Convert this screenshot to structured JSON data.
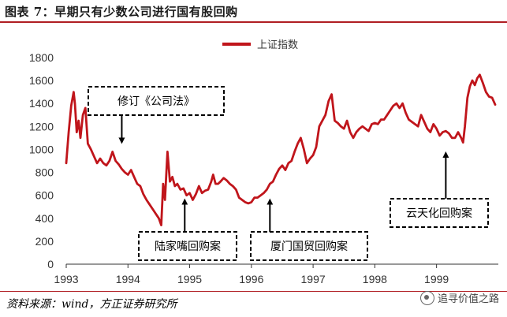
{
  "figure": {
    "title": "图表 7：早期只有少数公司进行国有股回购",
    "source": "资料来源：wind，方正证券研究所",
    "watermark": "追寻价值之路"
  },
  "chart_data": {
    "type": "line",
    "xlabel": "",
    "ylabel": "",
    "ylim": [
      0,
      1800
    ],
    "yticks": [
      0,
      200,
      400,
      600,
      800,
      1000,
      1200,
      1400,
      1600,
      1800
    ],
    "xticks": [
      "1993",
      "1994",
      "1995",
      "1996",
      "1997",
      "1998",
      "1999"
    ],
    "xlim": [
      1993.0,
      1999.95
    ],
    "grid": false,
    "legend": "top-center",
    "line_color": "#c0151b",
    "series": [
      {
        "name": "上证指数",
        "x": [
          1993.0,
          1993.04,
          1993.08,
          1993.12,
          1993.14,
          1993.17,
          1993.2,
          1993.23,
          1993.27,
          1993.31,
          1993.35,
          1993.4,
          1993.45,
          1993.5,
          1993.55,
          1993.6,
          1993.65,
          1993.7,
          1993.75,
          1993.8,
          1993.85,
          1993.9,
          1993.95,
          1994.0,
          1994.05,
          1994.1,
          1994.15,
          1994.2,
          1994.25,
          1994.3,
          1994.35,
          1994.4,
          1994.45,
          1994.5,
          1994.54,
          1994.57,
          1994.6,
          1994.64,
          1994.68,
          1994.72,
          1994.76,
          1994.8,
          1994.85,
          1994.9,
          1994.95,
          1995.0,
          1995.05,
          1995.1,
          1995.15,
          1995.2,
          1995.25,
          1995.3,
          1995.35,
          1995.38,
          1995.42,
          1995.46,
          1995.5,
          1995.55,
          1995.6,
          1995.65,
          1995.7,
          1995.75,
          1995.8,
          1995.85,
          1995.9,
          1995.95,
          1996.0,
          1996.05,
          1996.1,
          1996.15,
          1996.2,
          1996.25,
          1996.3,
          1996.35,
          1996.4,
          1996.45,
          1996.5,
          1996.55,
          1996.6,
          1996.65,
          1996.7,
          1996.75,
          1996.8,
          1996.85,
          1996.9,
          1996.95,
          1997.0,
          1997.05,
          1997.1,
          1997.15,
          1997.2,
          1997.25,
          1997.3,
          1997.35,
          1997.4,
          1997.45,
          1997.5,
          1997.55,
          1997.6,
          1997.65,
          1997.7,
          1997.75,
          1997.8,
          1997.85,
          1997.9,
          1997.95,
          1998.0,
          1998.05,
          1998.1,
          1998.15,
          1998.2,
          1998.25,
          1998.3,
          1998.35,
          1998.4,
          1998.45,
          1998.5,
          1998.55,
          1998.6,
          1998.65,
          1998.7,
          1998.75,
          1998.8,
          1998.85,
          1998.9,
          1998.95,
          1999.0,
          1999.05,
          1999.1,
          1999.15,
          1999.2,
          1999.25,
          1999.3,
          1999.35,
          1999.4,
          1999.43,
          1999.46,
          1999.5,
          1999.54,
          1999.58,
          1999.62,
          1999.66,
          1999.7,
          1999.75,
          1999.8,
          1999.85,
          1999.9,
          1999.95
        ],
        "values": [
          880,
          1150,
          1380,
          1500,
          1400,
          1150,
          1250,
          1100,
          1300,
          1360,
          1050,
          1000,
          940,
          880,
          920,
          880,
          860,
          900,
          980,
          900,
          870,
          830,
          800,
          780,
          820,
          760,
          700,
          680,
          610,
          560,
          520,
          480,
          440,
          400,
          340,
          700,
          560,
          980,
          720,
          760,
          680,
          700,
          650,
          660,
          600,
          620,
          560,
          610,
          680,
          620,
          640,
          650,
          720,
          780,
          700,
          700,
          720,
          750,
          730,
          700,
          680,
          650,
          580,
          560,
          540,
          530,
          540,
          580,
          580,
          600,
          620,
          650,
          700,
          720,
          780,
          830,
          860,
          820,
          880,
          900,
          980,
          1050,
          1100,
          1000,
          880,
          920,
          950,
          1020,
          1200,
          1250,
          1300,
          1420,
          1480,
          1250,
          1230,
          1200,
          1180,
          1250,
          1150,
          1100,
          1150,
          1180,
          1200,
          1180,
          1160,
          1220,
          1230,
          1220,
          1260,
          1260,
          1300,
          1340,
          1380,
          1400,
          1360,
          1400,
          1320,
          1260,
          1240,
          1220,
          1200,
          1300,
          1240,
          1180,
          1150,
          1220,
          1180,
          1120,
          1150,
          1160,
          1140,
          1100,
          1100,
          1150,
          1100,
          1060,
          1200,
          1450,
          1550,
          1600,
          1560,
          1620,
          1650,
          1580,
          1500,
          1460,
          1450,
          1390
        ]
      }
    ],
    "annotations": [
      {
        "label": "修订《公司法》",
        "arrow_to": [
          1993.9,
          1020
        ]
      },
      {
        "label": "陆家嘴回购案",
        "arrow_to": [
          1994.92,
          600
        ]
      },
      {
        "label": "厦门国贸回购案",
        "arrow_to": [
          1996.3,
          600
        ]
      },
      {
        "label": "云天化回购案",
        "arrow_to": [
          1999.15,
          1010
        ]
      }
    ]
  }
}
